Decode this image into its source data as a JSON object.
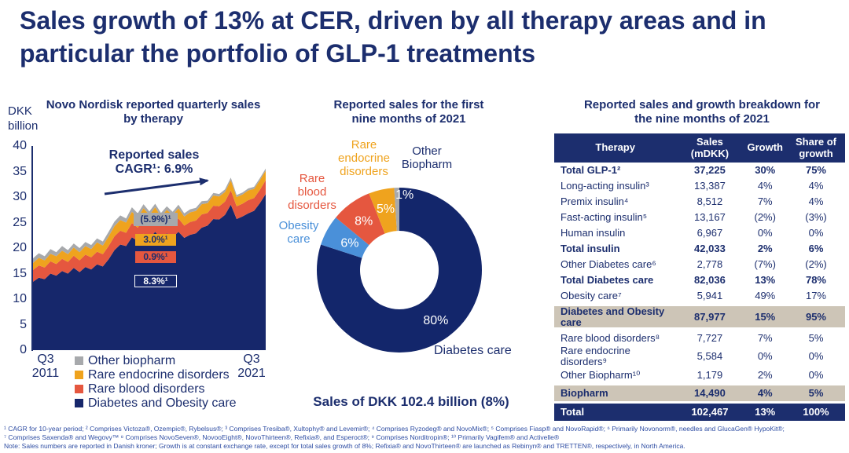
{
  "slide_title": "Sales growth of 13% at CER, driven by all therapy areas and in\nparticular the portfolio of GLP-1 treatments",
  "colors": {
    "navy": "#1c2e6e",
    "area_navy": "#16276b",
    "red": "#e5573f",
    "yellow": "#efa31e",
    "gray": "#a7a9ac",
    "light_blue": "#4a90d9",
    "beige": "#cdc5b7",
    "white": "#ffffff"
  },
  "left_chart": {
    "title": "Novo Nordisk reported quarterly sales\nby therapy",
    "y_axis_unit": "DKK\nbillion",
    "cagr_annotation": "Reported sales\nCAGR¹: 6.9%",
    "segment_cagr_labels": [
      {
        "text": "(5.9%)¹",
        "series": "Other biopharm"
      },
      {
        "text": "3.0%¹",
        "series": "Rare endocrine disorders"
      },
      {
        "text": "0.9%¹",
        "series": "Rare blood disorders"
      },
      {
        "text": "8.3%¹",
        "series": "Diabetes and Obesity care"
      }
    ],
    "x_start": "Q3\n2011",
    "x_end": "Q3\n2021",
    "legend": [
      {
        "label": "Other biopharm",
        "color": "#a7a9ac"
      },
      {
        "label": "Rare endocrine disorders",
        "color": "#efa31e"
      },
      {
        "label": "Rare blood disorders",
        "color": "#e5573f"
      },
      {
        "label": "Diabetes and Obesity care",
        "color": "#16276b"
      }
    ]
  },
  "donut": {
    "title": "Reported sales for the first\nnine months of 2021",
    "caption": "Sales of DKK 102.4 billion (8%)",
    "ext_labels": {
      "rare_endocrine": "Rare\nendocrine\ndisorders",
      "other_biopharm": "Other\nBiopharm",
      "rare_blood": "Rare\nblood\ndisorders",
      "obesity": "Obesity\ncare",
      "diabetes": "Diabetes care"
    }
  },
  "table": {
    "title": "Reported sales and growth breakdown for\nthe nine months of 2021",
    "headers": [
      "Therapy",
      "Sales\n(mDKK)",
      "Growth",
      "Share of\ngrowth"
    ],
    "rows": [
      {
        "therapy": "Total GLP-1²",
        "sales": "37,225",
        "growth": "30%",
        "share": "75%",
        "style": "bold"
      },
      {
        "therapy": "Long-acting insulin³",
        "sales": "13,387",
        "growth": "4%",
        "share": "4%",
        "style": "normal"
      },
      {
        "therapy": "Premix insulin⁴",
        "sales": "8,512",
        "growth": "7%",
        "share": "4%",
        "style": "normal"
      },
      {
        "therapy": "Fast-acting insulin⁵",
        "sales": "13,167",
        "growth": "(2%)",
        "share": "(3%)",
        "style": "normal"
      },
      {
        "therapy": "Human insulin",
        "sales": "6,967",
        "growth": "0%",
        "share": "0%",
        "style": "normal"
      },
      {
        "therapy": "Total insulin",
        "sales": "42,033",
        "growth": "2%",
        "share": "6%",
        "style": "bold"
      },
      {
        "therapy": "Other Diabetes care⁶",
        "sales": "2,778",
        "growth": "(7%)",
        "share": "(2%)",
        "style": "normal"
      },
      {
        "therapy": "Total Diabetes care",
        "sales": "82,036",
        "growth": "13%",
        "share": "78%",
        "style": "bold"
      },
      {
        "therapy": "Obesity care⁷",
        "sales": "5,941",
        "growth": "49%",
        "share": "17%",
        "style": "normal"
      },
      {
        "therapy": "Diabetes and Obesity care",
        "sales": "87,977",
        "growth": "15%",
        "share": "95%",
        "style": "subtotal"
      },
      {
        "therapy": "Rare blood disorders⁸",
        "sales": "7,727",
        "growth": "7%",
        "share": "5%",
        "style": "normal"
      },
      {
        "therapy": "Rare endocrine disorders⁹",
        "sales": "5,584",
        "growth": "0%",
        "share": "0%",
        "style": "normal"
      },
      {
        "therapy": "Other Biopharm¹⁰",
        "sales": "1,179",
        "growth": "2%",
        "share": "0%",
        "style": "normal"
      },
      {
        "therapy": "Biopharm",
        "sales": "14,490",
        "growth": "4%",
        "share": "5%",
        "style": "subtotal"
      },
      {
        "therapy": "Total",
        "sales": "102,467",
        "growth": "13%",
        "share": "100%",
        "style": "total"
      }
    ]
  },
  "footnotes": [
    "¹ CAGR for 10-year period; ² Comprises Victoza®, Ozempic®, Rybelsus®; ³ Comprises Tresiba®, Xultophy® and Levemir®; ⁴ Comprises Ryzodeg® and NovoMix®; ⁵ Comprises Fiasp® and NovoRapid®; ⁶ Primarily Novonorm®, needles and GlucaGen® HypoKit®;",
    "⁷ Comprises Saxenda® and Wegovy™ ⁸ Comprises NovoSeven®, NovooEight®, NovoThirteen®, Refixia®, and Esperoct®; ⁹ Comprises Norditropin®; ¹⁰ Primarily Vagifem® and Activelle®",
    "Note: Sales numbers are reported in Danish kroner; Growth is at constant exchange rate, except for total sales growth of 8%; Refixia® and NovoThirteen® are launched as Rebinyn® and TRETTEN®, respectively, in North America."
  ],
  "chart_data": [
    {
      "type": "area",
      "title": "Novo Nordisk reported quarterly sales by therapy",
      "xlabel": "Quarters from Q3 2011 to Q3 2021",
      "ylabel": "DKK billion",
      "ylim": [
        0,
        40
      ],
      "yticks": [
        40,
        35,
        30,
        25,
        20,
        15,
        10,
        5,
        0
      ],
      "x_start": "Q3 2011",
      "x_end": "Q3 2021",
      "stacked": true,
      "series": [
        {
          "name": "Diabetes and Obesity care",
          "color": "#16276b",
          "cagr": "8.3%",
          "values": [
            13.4,
            14.2,
            13.9,
            15.0,
            14.6,
            15.5,
            15.0,
            16.1,
            15.3,
            16.3,
            15.8,
            16.8,
            16.4,
            17.8,
            19.6,
            20.7,
            20.4,
            22.1,
            21.4,
            22.8,
            21.9,
            23.2,
            21.8,
            22.9,
            22.1,
            23.2,
            22.0,
            22.6,
            22.9,
            24.0,
            24.4,
            25.7,
            25.6,
            26.5,
            28.5,
            25.7,
            26.2,
            26.8,
            27.3,
            28.8,
            30.6
          ]
        },
        {
          "name": "Rare blood disorders",
          "color": "#e5573f",
          "cagr": "0.9%",
          "values": [
            2.3,
            2.4,
            2.3,
            2.4,
            2.3,
            2.4,
            2.3,
            2.4,
            2.3,
            2.4,
            2.4,
            2.5,
            2.4,
            2.6,
            2.7,
            2.7,
            2.6,
            2.8,
            2.6,
            2.8,
            2.6,
            2.7,
            2.5,
            2.6,
            2.5,
            2.6,
            2.4,
            2.5,
            2.5,
            2.6,
            2.5,
            2.6,
            2.6,
            2.6,
            2.8,
            2.5,
            2.5,
            2.6,
            2.5,
            2.6,
            2.7
          ]
        },
        {
          "name": "Rare endocrine disorders",
          "color": "#efa31e",
          "cagr": "3.0%",
          "values": [
            1.4,
            1.5,
            1.4,
            1.5,
            1.5,
            1.6,
            1.5,
            1.6,
            1.6,
            1.7,
            1.6,
            1.8,
            1.7,
            1.9,
            2.0,
            2.1,
            2.0,
            2.2,
            2.0,
            2.2,
            2.0,
            2.1,
            1.9,
            2.0,
            1.9,
            2.0,
            1.8,
            1.9,
            1.9,
            2.0,
            1.9,
            2.0,
            1.9,
            1.9,
            2.0,
            1.8,
            1.8,
            1.9,
            1.8,
            1.9,
            1.9
          ]
        },
        {
          "name": "Other biopharm",
          "color": "#a7a9ac",
          "cagr": "(5.9%)",
          "values": [
            0.9,
            0.9,
            0.8,
            0.9,
            0.8,
            0.9,
            0.8,
            0.8,
            0.8,
            0.8,
            0.8,
            0.8,
            0.8,
            0.9,
            0.9,
            0.9,
            0.8,
            0.9,
            0.8,
            0.8,
            0.7,
            0.7,
            0.7,
            0.7,
            0.6,
            0.7,
            0.6,
            0.6,
            0.6,
            0.6,
            0.5,
            0.5,
            0.5,
            0.5,
            0.5,
            0.4,
            0.4,
            0.4,
            0.4,
            0.4,
            0.4
          ]
        }
      ],
      "annotation": "Reported sales CAGR¹: 6.9%"
    },
    {
      "type": "pie",
      "title": "Reported sales for the first nine months of 2021",
      "donut": true,
      "slices": [
        {
          "label": "Diabetes care",
          "pct": 80,
          "color": "#13266b",
          "label_r": 79
        },
        {
          "label": "Obesity care",
          "pct": 6,
          "color": "#4a90d9",
          "label_r": 72
        },
        {
          "label": "Rare blood disorders",
          "pct": 8,
          "color": "#e5573f",
          "label_r": 77
        },
        {
          "label": "Rare endocrine disorders",
          "pct": 5,
          "color": "#efa31e",
          "label_r": 80
        },
        {
          "label": "Other Biopharm",
          "pct": 1,
          "color": "#a7a9ac",
          "label_r": 96,
          "label_angle": 4
        }
      ],
      "caption": "Sales of DKK 102.4 billion (8%)"
    }
  ]
}
